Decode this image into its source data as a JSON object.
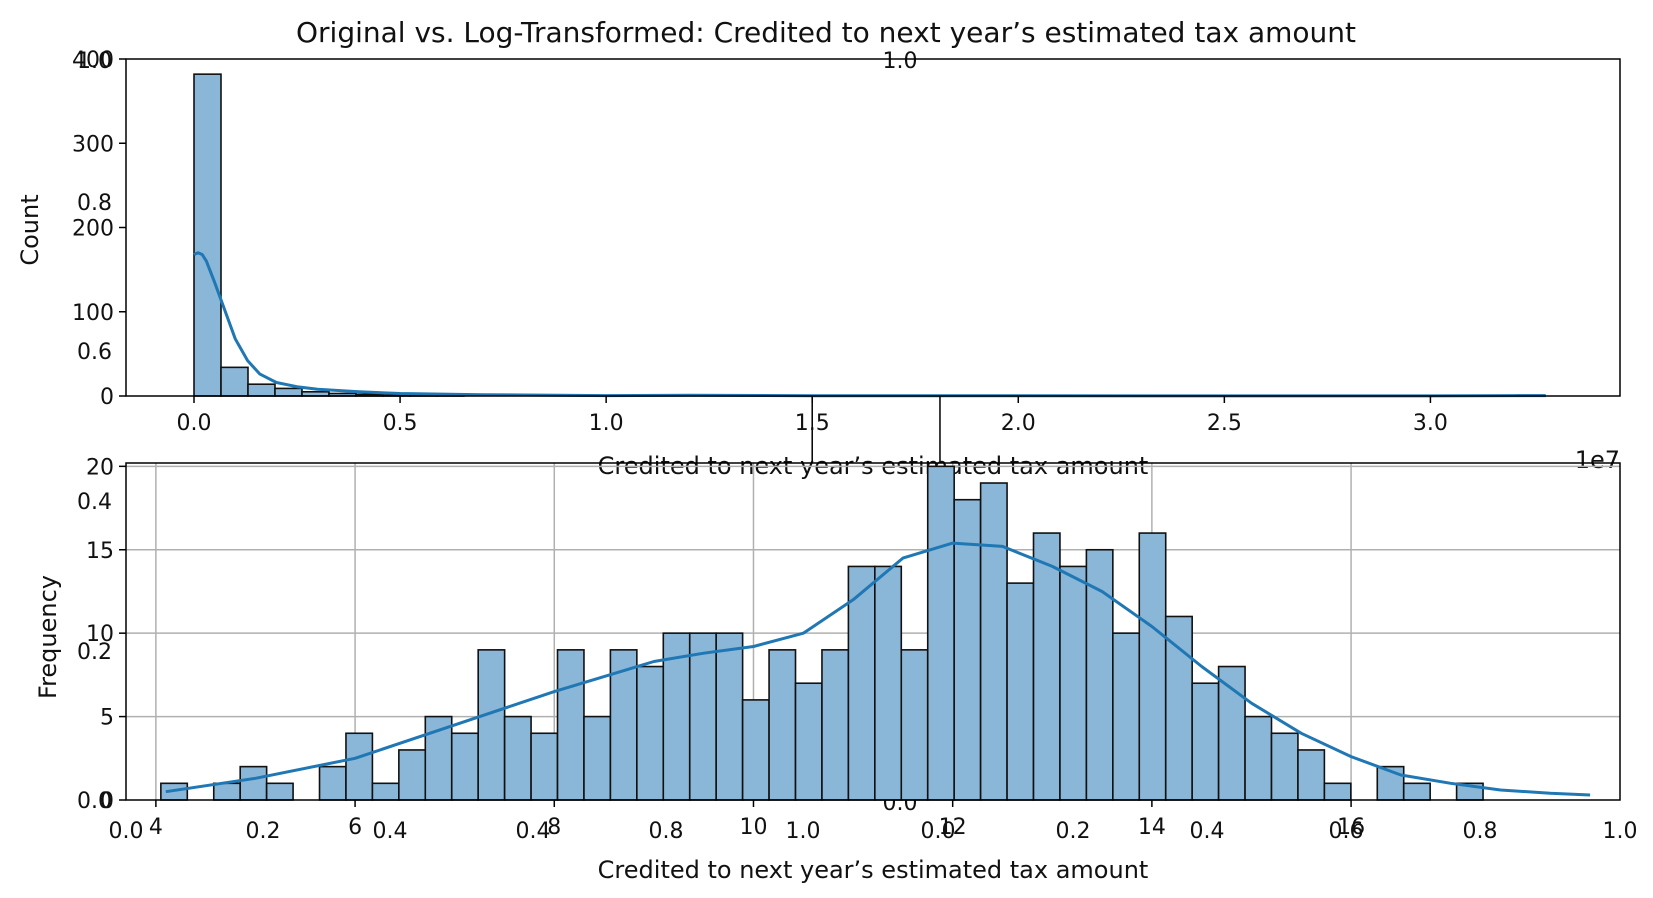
{
  "colors": {
    "bar_fill": "#8ab6d8",
    "bar_edge": "#111111",
    "kde": "#1f77b4",
    "grid": "#b0b0b0",
    "axis": "#000000"
  },
  "figure": {
    "suptitle": "Original vs. Log-Transformed: Credited to next year’s estimated tax amount",
    "ghost_top_label": "1.0",
    "ghost_left_ticks": [
      "0.0",
      "0.2",
      "0.4",
      "0.6",
      "0.8",
      "1.0"
    ],
    "ghost_bottom_ticks": [
      "0.0",
      "0.2",
      "0.4",
      "0.6",
      "0.8",
      "1.0"
    ],
    "ghost_center_bottom": "0.0"
  },
  "chart_data": [
    {
      "type": "bar",
      "name": "original",
      "title": "",
      "xlabel": "Credited to next year’s estimated tax amount",
      "ylabel": "Count",
      "x_offset_label": "1e7",
      "xlim": [
        -0.165,
        3.46
      ],
      "ylim": [
        0,
        400
      ],
      "xticks": [
        0.0,
        0.5,
        1.0,
        1.5,
        2.0,
        2.5,
        3.0
      ],
      "xtick_labels": [
        "0.0",
        "0.5",
        "1.0",
        "1.5",
        "2.0",
        "2.5",
        "3.0"
      ],
      "yticks": [
        0,
        100,
        200,
        300,
        400
      ],
      "ytick_labels": [
        "0",
        "100",
        "200",
        "300",
        "400"
      ],
      "bin_start": 0.0,
      "bin_width": 0.0655,
      "counts": [
        382,
        34,
        14,
        9,
        5,
        3,
        2,
        1,
        1,
        1,
        0,
        0,
        0,
        0,
        0,
        0,
        0,
        0,
        0,
        0,
        0,
        0,
        0,
        0,
        0,
        0,
        0,
        0,
        0,
        0,
        0,
        0,
        0,
        0,
        0,
        0,
        0,
        0,
        0,
        0,
        0,
        0,
        0,
        0,
        0,
        0,
        0,
        0,
        0,
        1
      ],
      "kde": {
        "x": [
          0.0,
          0.01,
          0.02,
          0.03,
          0.05,
          0.07,
          0.1,
          0.13,
          0.16,
          0.2,
          0.25,
          0.3,
          0.4,
          0.5,
          0.7,
          1.0,
          1.2,
          1.5,
          2.0,
          2.5,
          3.0,
          3.28
        ],
        "y": [
          168,
          170,
          168,
          160,
          135,
          108,
          68,
          42,
          26,
          16,
          11,
          8,
          5,
          3,
          1.5,
          0.5,
          1,
          0.3,
          0.2,
          0.1,
          0.1,
          0.5
        ]
      },
      "grid": false,
      "grid_lines_x": [
        1.5,
        1.81
      ]
    },
    {
      "type": "bar",
      "name": "log-transformed",
      "title": "",
      "xlabel": "Credited to next year’s estimated tax amount",
      "ylabel": "Frequency",
      "xlim": [
        3.7,
        18.7
      ],
      "ylim": [
        0,
        20.2
      ],
      "xticks": [
        4,
        6,
        8,
        10,
        12,
        14,
        16
      ],
      "xtick_labels": [
        "4",
        "6",
        "8",
        "10",
        "12",
        "14",
        "16"
      ],
      "yticks": [
        0,
        5,
        10,
        15,
        20
      ],
      "ytick_labels": [
        "0",
        "5",
        "10",
        "15",
        "20"
      ],
      "bin_start": 4.05,
      "bin_width": 0.2655,
      "counts": [
        1,
        0,
        1,
        2,
        1,
        0,
        2,
        4,
        1,
        3,
        5,
        4,
        9,
        5,
        4,
        9,
        5,
        9,
        8,
        10,
        10,
        10,
        6,
        9,
        7,
        9,
        14,
        14,
        9,
        20,
        18,
        19,
        13,
        16,
        14,
        15,
        10,
        16,
        11,
        7,
        8,
        5,
        4,
        3,
        1,
        0,
        2,
        1,
        0,
        1
      ],
      "kde": {
        "x": [
          4.1,
          5.0,
          6.0,
          7.0,
          8.0,
          9.0,
          9.5,
          10.0,
          10.5,
          11.0,
          11.5,
          12.0,
          12.5,
          13.0,
          13.5,
          14.0,
          14.5,
          15.0,
          15.5,
          16.0,
          16.5,
          17.0,
          17.5,
          18.0,
          18.4
        ],
        "y": [
          0.5,
          1.3,
          2.5,
          4.5,
          6.5,
          8.3,
          8.8,
          9.2,
          10.0,
          12.0,
          14.5,
          15.4,
          15.2,
          14.0,
          12.5,
          10.4,
          8.0,
          5.8,
          4.0,
          2.6,
          1.5,
          1.0,
          0.6,
          0.4,
          0.3
        ]
      },
      "grid": true
    }
  ]
}
